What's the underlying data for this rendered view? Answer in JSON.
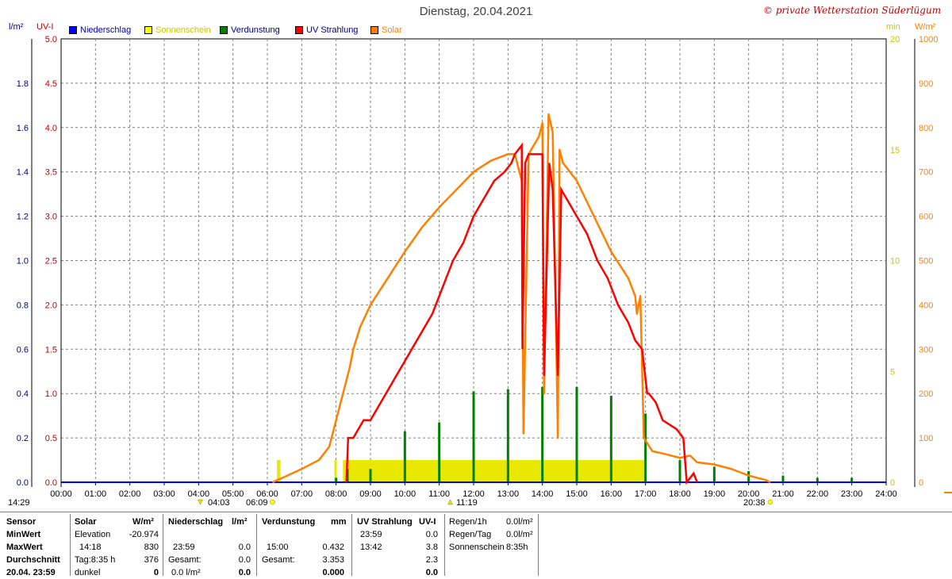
{
  "title": "Dienstag, 20.04.2021",
  "copyright": "© private Wetterstation Süderlügum",
  "axis_units": {
    "left1": "l/m²",
    "left2": "UV-I",
    "right1": "min",
    "right2": "W/m²"
  },
  "legend": [
    {
      "label": "Niederschlag",
      "swatch": "#0000ff",
      "text_color": "#0000c0"
    },
    {
      "label": "Sonnenschein",
      "swatch": "#ffff00",
      "text_color": "#c8c800"
    },
    {
      "label": "Verdunstung",
      "swatch": "#007f00",
      "text_color": "#000080"
    },
    {
      "label": "UV Strahlung",
      "swatch": "#ff0000",
      "text_color": "#000080"
    },
    {
      "label": "Solar",
      "swatch": "#ff8000",
      "text_color": "#ff8000"
    }
  ],
  "colors": {
    "niederschlag": "#0000ff",
    "sonnenschein": "#e8e800",
    "verdunstung": "#007f00",
    "uv": "#ff0000",
    "solar": "#ff8000",
    "axis_blue": "#000080",
    "axis_red": "#c00000",
    "axis_min": "#c8c800",
    "grid": "#808080"
  },
  "markers": {
    "left_time": "14:29",
    "moonset": "04:03",
    "sunrise": "06:09",
    "moonrise": "11:19",
    "sunset": "20:38"
  },
  "chart_data": {
    "type": "line",
    "x_ticks": [
      "00:00",
      "01:00",
      "02:00",
      "03:00",
      "04:00",
      "05:00",
      "06:00",
      "07:00",
      "08:00",
      "09:00",
      "10:00",
      "11:00",
      "12:00",
      "13:00",
      "14:00",
      "15:00",
      "16:00",
      "17:00",
      "18:00",
      "19:00",
      "20:00",
      "21:00",
      "22:00",
      "23:00",
      "24:00"
    ],
    "xlim": [
      0,
      24
    ],
    "axes": {
      "niederschlag_lm2": {
        "ylim": [
          0,
          2.0
        ],
        "ticks": [
          "0.0",
          "0.2",
          "0.4",
          "0.6",
          "0.8",
          "1.0",
          "1.2",
          "1.4",
          "1.6",
          "1.8",
          ""
        ]
      },
      "uv_index": {
        "ylim": [
          0,
          5.0
        ],
        "ticks": [
          "0.0",
          "0.5",
          "1.0",
          "1.5",
          "2.0",
          "2.5",
          "3.0",
          "3.5",
          "4.0",
          "4.5",
          "5.0"
        ]
      },
      "sonnenschein_min": {
        "ylim": [
          0,
          20
        ],
        "ticks": [
          "0",
          "5",
          "10",
          "15",
          "20"
        ]
      },
      "solar_wm2": {
        "ylim": [
          0,
          1000
        ],
        "ticks": [
          "0",
          "100",
          "200",
          "300",
          "400",
          "500",
          "600",
          "700",
          "800",
          "900",
          "1000"
        ]
      }
    },
    "grid": true,
    "series": [
      {
        "name": "Solar",
        "axis": "solar_wm2",
        "x": [
          6.15,
          6.5,
          7.0,
          7.5,
          7.8,
          8.0,
          8.2,
          8.4,
          8.5,
          8.7,
          9.0,
          9.5,
          10.0,
          10.5,
          11.0,
          11.5,
          12.0,
          12.5,
          13.0,
          13.2,
          13.4,
          13.45,
          13.6,
          13.9,
          14.0,
          14.05,
          14.18,
          14.3,
          14.45,
          14.5,
          14.6,
          15.0,
          15.5,
          16.0,
          16.5,
          16.7,
          16.75,
          16.85,
          16.95,
          17.2,
          17.5,
          18.0,
          18.3,
          18.5,
          19.0,
          19.5,
          20.0,
          20.5,
          20.63
        ],
        "y": [
          0,
          12,
          30,
          50,
          80,
          140,
          200,
          260,
          300,
          350,
          400,
          460,
          520,
          575,
          620,
          660,
          700,
          725,
          740,
          740,
          680,
          110,
          740,
          780,
          810,
          200,
          830,
          790,
          100,
          750,
          720,
          680,
          600,
          520,
          460,
          420,
          380,
          420,
          100,
          70,
          65,
          55,
          60,
          45,
          40,
          30,
          15,
          5,
          0
        ]
      },
      {
        "name": "UV Strahlung",
        "axis": "uv_index",
        "x": [
          8.3,
          8.35,
          8.5,
          8.8,
          9.0,
          9.3,
          9.6,
          9.9,
          10.2,
          10.5,
          10.8,
          11.1,
          11.4,
          11.7,
          12.0,
          12.3,
          12.6,
          12.9,
          13.1,
          13.2,
          13.4,
          13.42,
          13.5,
          13.6,
          13.7,
          14.0,
          14.05,
          14.2,
          14.3,
          14.45,
          14.55,
          14.7,
          15.0,
          15.3,
          15.6,
          15.9,
          16.2,
          16.5,
          16.7,
          16.9,
          17.05,
          17.1,
          17.3,
          17.5,
          17.9,
          18.1,
          18.2,
          18.4,
          18.5
        ],
        "y": [
          0,
          0.5,
          0.5,
          0.7,
          0.7,
          0.9,
          1.1,
          1.3,
          1.5,
          1.7,
          1.9,
          2.2,
          2.5,
          2.7,
          3.0,
          3.2,
          3.4,
          3.5,
          3.6,
          3.7,
          3.8,
          1.5,
          3.6,
          3.7,
          3.7,
          3.7,
          1.2,
          3.6,
          3.3,
          1.2,
          3.3,
          3.2,
          3.0,
          2.8,
          2.5,
          2.3,
          2.0,
          1.8,
          1.6,
          1.5,
          1.0,
          1.0,
          0.9,
          0.7,
          0.6,
          0.5,
          0.0,
          0.1,
          0.0
        ]
      },
      {
        "name": "Sonnenschein",
        "axis": "sonnenschein_min",
        "x": [
          6.3,
          7.9,
          8.2,
          17.0
        ],
        "y": [
          1,
          1,
          1,
          1
        ],
        "bars": [
          {
            "x0": 6.28,
            "x1": 6.38,
            "v": 1.0
          },
          {
            "x0": 7.95,
            "x1": 8.02,
            "v": 1.0
          },
          {
            "x0": 8.2,
            "x1": 17.0,
            "v": 1.0
          }
        ]
      },
      {
        "name": "Verdunstung",
        "axis": "niederschlag_lm2",
        "x": [
          8.0,
          8.33,
          9.0,
          10.0,
          11.0,
          12.0,
          13.0,
          14.0,
          15.0,
          16.0,
          17.0,
          18.0,
          19.0,
          20.0,
          21.0,
          22.0,
          23.0
        ],
        "y": [
          0.02,
          0.06,
          0.06,
          0.23,
          0.27,
          0.41,
          0.42,
          0.43,
          0.43,
          0.39,
          0.31,
          0.1,
          0.07,
          0.05,
          0.03,
          0.02,
          0.02
        ]
      },
      {
        "name": "Niederschlag",
        "axis": "niederschlag_lm2",
        "x": [
          0,
          24
        ],
        "y": [
          0,
          0
        ]
      }
    ]
  },
  "table": {
    "headers": {
      "sensor": "Sensor",
      "solar": "Solar",
      "solar_unit": "W/m²",
      "nieder": "Niederschlag",
      "nieder_unit": "l/m²",
      "verd": "Verdunstung",
      "verd_unit": "mm",
      "uv": "UV Strahlung",
      "uv_unit": "UV-I"
    },
    "rows": [
      {
        "label": "MinWert",
        "solar_a": "Elevation",
        "solar_b": "-20.974",
        "nieder_a": "",
        "nieder_b": "",
        "verd_a": "",
        "verd_b": "",
        "uv_a": "23:59",
        "uv_b": "0.0"
      },
      {
        "label": "MaxWert",
        "solar_a": "14:18",
        "solar_b": "830",
        "nieder_a": "23:59",
        "nieder_b": "0.0",
        "verd_a": "15:00",
        "verd_b": "0.432",
        "uv_a": "13:42",
        "uv_b": "3.8"
      },
      {
        "label": "Durchschnitt",
        "solar_a": "Tag:8:35 h",
        "solar_b": "376",
        "nieder_a": "Gesamt:",
        "nieder_b": "0.0",
        "verd_a": "Gesamt:",
        "verd_b": "3.353",
        "uv_a": "",
        "uv_b": "2.3"
      },
      {
        "label": "20.04. 23:59",
        "solar_a": "dunkel",
        "solar_b": "0",
        "nieder_a": "0.0 l/m²",
        "nieder_b": "0.0",
        "verd_a": "",
        "verd_b": "0.000",
        "uv_a": "",
        "uv_b": "0.0"
      }
    ],
    "extra": [
      {
        "label": "Regen/1h",
        "value": "0.0l/m²"
      },
      {
        "label": "Regen/Tag",
        "value": "0.0l/m²"
      },
      {
        "label": "Sonnenschein",
        "value": "8:35h"
      }
    ]
  }
}
